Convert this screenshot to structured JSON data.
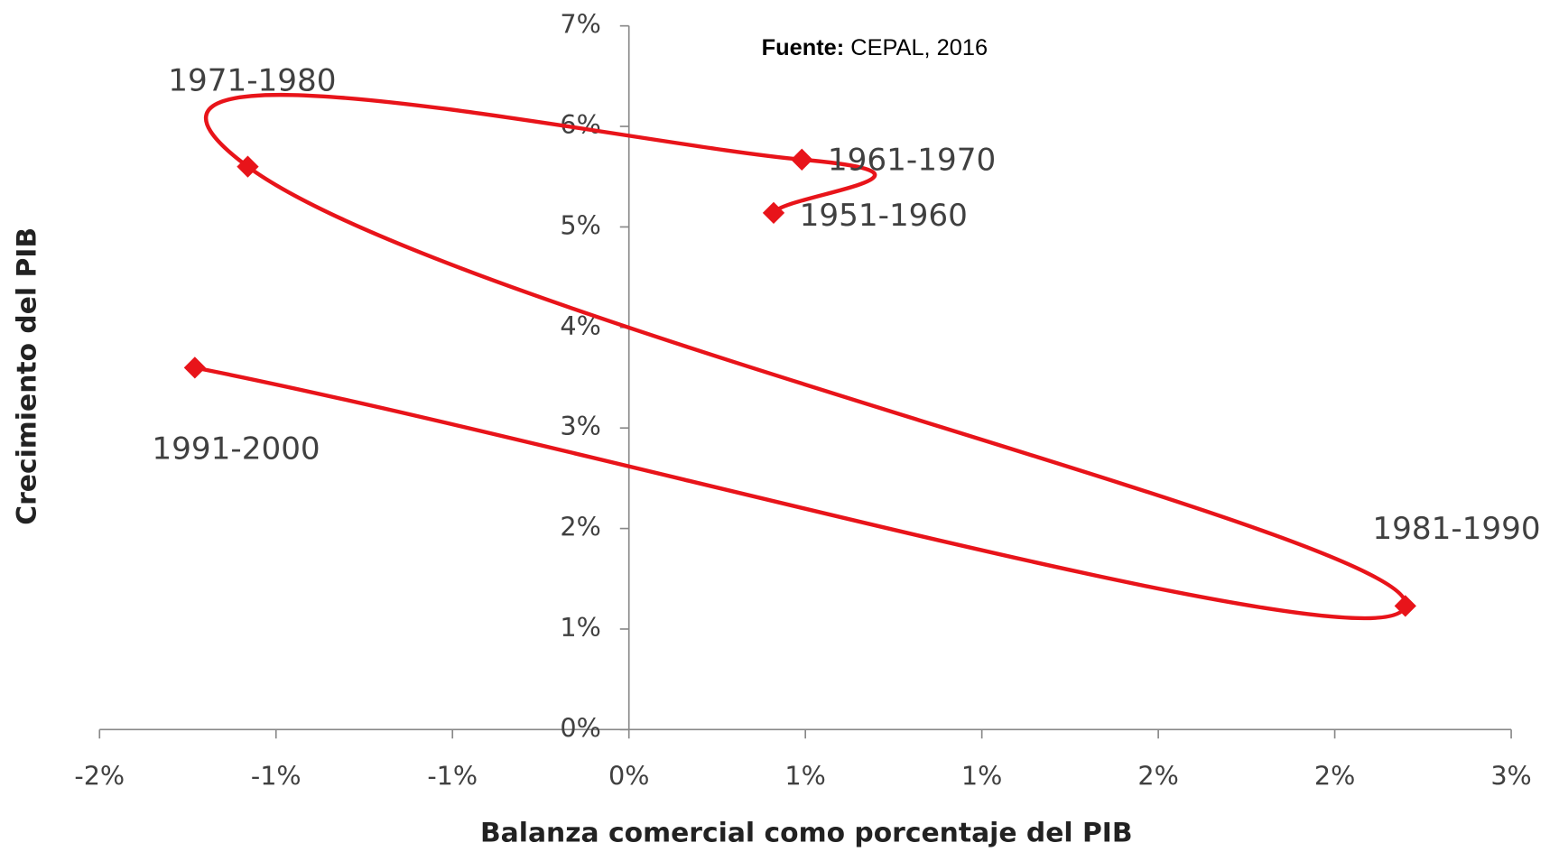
{
  "chart_data": {
    "type": "scatter",
    "source_label": "Fuente:",
    "source": "CEPAL, 2016",
    "xlabel": "Balanza comercial como porcentaje del PIB",
    "ylabel": "Crecimiento del PIB",
    "labels": [
      "1951-1960",
      "1961-1970",
      "1971-1980",
      "1981-1990",
      "1991-2000"
    ],
    "x": [
      0.41,
      0.49,
      -1.08,
      2.2,
      -1.23
    ],
    "values": [
      5.14,
      5.67,
      5.6,
      1.23,
      3.6
    ],
    "color": "#e8141a",
    "connect": "smooth",
    "xlim": [
      -1.5,
      2.5
    ],
    "xticks": [
      {
        "value": -1.5,
        "label": "-2%"
      },
      {
        "value": -1.0,
        "label": "-1%"
      },
      {
        "value": -0.5,
        "label": "-1%"
      },
      {
        "value": 0,
        "label": "0%"
      },
      {
        "value": 0.5,
        "label": "1%"
      },
      {
        "value": 1.0,
        "label": "1%"
      },
      {
        "value": 1.5,
        "label": "2%"
      },
      {
        "value": 2.0,
        "label": "2%"
      },
      {
        "value": 2.5,
        "label": "3%"
      }
    ],
    "ylim": [
      0,
      7
    ],
    "yticks": [
      {
        "value": 0,
        "label": "0%"
      },
      {
        "value": 1,
        "label": "1%"
      },
      {
        "value": 2,
        "label": "2%"
      },
      {
        "value": 3,
        "label": "3%"
      },
      {
        "value": 4,
        "label": "4%"
      },
      {
        "value": 5,
        "label": "5%"
      },
      {
        "value": 6,
        "label": "6%"
      },
      {
        "value": 7,
        "label": "7%"
      }
    ]
  }
}
